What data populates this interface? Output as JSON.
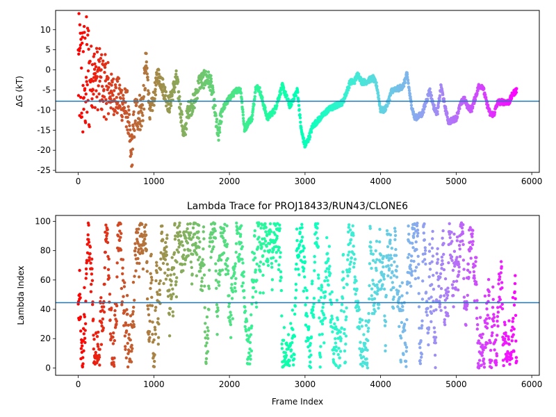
{
  "chart_data": [
    {
      "type": "scatter",
      "title": "",
      "xlabel": "",
      "ylabel": "ΔG (kT)",
      "xlim": [
        -300,
        6100
      ],
      "ylim": [
        -25.5,
        14.8
      ],
      "xticks": [
        0,
        1000,
        2000,
        3000,
        4000,
        5000,
        6000
      ],
      "yticks": [
        -25,
        -20,
        -15,
        -10,
        -5,
        0,
        5,
        10
      ],
      "hline": -7.8,
      "hline_color": "#1f77b4",
      "colormap": "rainbow (reversed along frame index: red at 0, violet at end)",
      "n_frames": 5800,
      "trend_points": [
        [
          0,
          0
        ],
        [
          60,
          -3
        ],
        [
          150,
          -1
        ],
        [
          250,
          -2
        ],
        [
          350,
          -4
        ],
        [
          450,
          -6
        ],
        [
          550,
          -7
        ],
        [
          650,
          -10
        ],
        [
          700,
          -22
        ],
        [
          750,
          -11
        ],
        [
          850,
          -10
        ],
        [
          900,
          2
        ],
        [
          950,
          -11
        ],
        [
          1000,
          -7
        ],
        [
          1050,
          -1
        ],
        [
          1100,
          -3
        ],
        [
          1200,
          -9
        ],
        [
          1300,
          -2
        ],
        [
          1400,
          -17
        ],
        [
          1450,
          -10
        ],
        [
          1500,
          -9
        ],
        [
          1550,
          -7
        ],
        [
          1600,
          -3
        ],
        [
          1700,
          -2
        ],
        [
          1750,
          -3
        ],
        [
          1800,
          -9
        ],
        [
          1850,
          -17
        ],
        [
          1900,
          -10
        ],
        [
          2000,
          -7
        ],
        [
          2100,
          -5
        ],
        [
          2150,
          -5
        ],
        [
          2200,
          -15
        ],
        [
          2250,
          -13
        ],
        [
          2300,
          -12
        ],
        [
          2350,
          -4
        ],
        [
          2400,
          -5
        ],
        [
          2500,
          -12
        ],
        [
          2600,
          -10
        ],
        [
          2700,
          -4
        ],
        [
          2800,
          -9
        ],
        [
          2900,
          -5
        ],
        [
          2950,
          -15
        ],
        [
          3000,
          -19
        ],
        [
          3050,
          -17
        ],
        [
          3100,
          -14
        ],
        [
          3200,
          -12
        ],
        [
          3300,
          -10
        ],
        [
          3400,
          -9
        ],
        [
          3500,
          -8
        ],
        [
          3600,
          -3
        ],
        [
          3650,
          -3
        ],
        [
          3700,
          -1
        ],
        [
          3750,
          -3
        ],
        [
          3800,
          -3
        ],
        [
          3900,
          -2
        ],
        [
          3950,
          -4
        ],
        [
          4000,
          -10
        ],
        [
          4050,
          -10
        ],
        [
          4100,
          -8
        ],
        [
          4150,
          -5
        ],
        [
          4200,
          -5
        ],
        [
          4300,
          -4
        ],
        [
          4350,
          -1
        ],
        [
          4400,
          -8
        ],
        [
          4450,
          -12
        ],
        [
          4550,
          -11
        ],
        [
          4600,
          -8
        ],
        [
          4650,
          -5
        ],
        [
          4700,
          -9
        ],
        [
          4750,
          -11
        ],
        [
          4800,
          -4
        ],
        [
          4850,
          -9
        ],
        [
          4900,
          -13
        ],
        [
          5000,
          -12
        ],
        [
          5050,
          -9
        ],
        [
          5100,
          -7
        ],
        [
          5150,
          -9
        ],
        [
          5200,
          -10
        ],
        [
          5250,
          -7
        ],
        [
          5300,
          -4
        ],
        [
          5350,
          -4
        ],
        [
          5400,
          -8
        ],
        [
          5450,
          -11
        ],
        [
          5500,
          -11
        ],
        [
          5550,
          -8
        ],
        [
          5700,
          -8
        ],
        [
          5750,
          -6
        ],
        [
          5800,
          -5
        ]
      ]
    },
    {
      "type": "scatter",
      "title": "Lambda Trace for PROJ18433/RUN43/CLONE6",
      "xlabel": "Frame Index",
      "ylabel": "Lambda Index",
      "xlim": [
        -300,
        6100
      ],
      "ylim": [
        -5,
        104
      ],
      "xticks": [
        0,
        1000,
        2000,
        3000,
        4000,
        5000,
        6000
      ],
      "yticks": [
        0,
        20,
        40,
        60,
        80,
        100
      ],
      "hline": 44.5,
      "hline_color": "#1f77b4",
      "colormap": "rainbow (reversed along frame index: red at 0, violet at end)",
      "n_frames": 5800,
      "value_range": [
        0,
        99
      ]
    }
  ]
}
